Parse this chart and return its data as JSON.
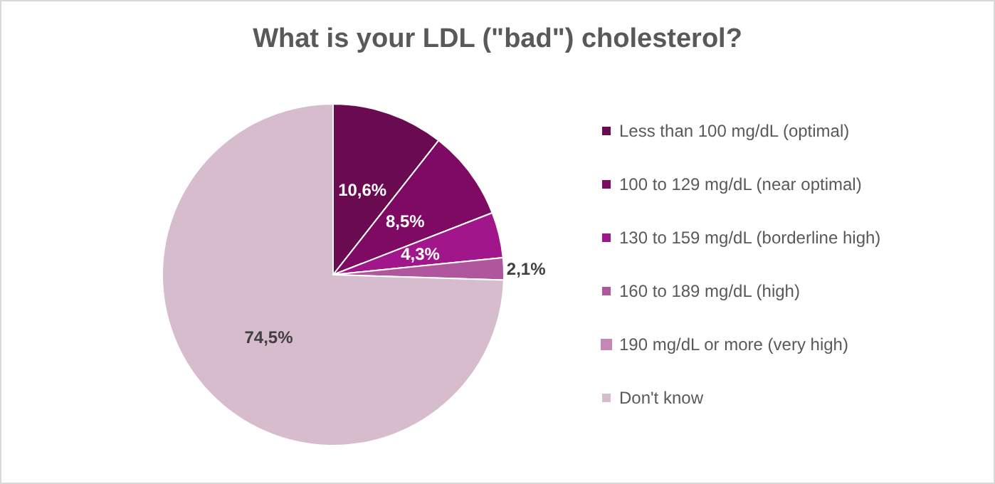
{
  "chart_data": {
    "type": "pie",
    "title": "What is your LDL (\"bad\") cholesterol?",
    "categories": [
      "Less than 100 mg/dL (optimal)",
      "100 to 129 mg/dL (near optimal)",
      "130 to 159 mg/dL (borderline high)",
      "160 to 189 mg/dL (high)",
      "190 mg/dL or more (very high)",
      "Don't know"
    ],
    "values": [
      10.6,
      8.5,
      4.3,
      2.1,
      0,
      74.5
    ],
    "value_labels": [
      "10,6%",
      "8,5%",
      "4,3%",
      "2,1%",
      null,
      "74,5%"
    ],
    "colors": [
      "#6a0b52",
      "#7e0a63",
      "#a1168a",
      "#b0569c",
      "#c388b5",
      "#d6bccd"
    ],
    "legend": "right"
  }
}
